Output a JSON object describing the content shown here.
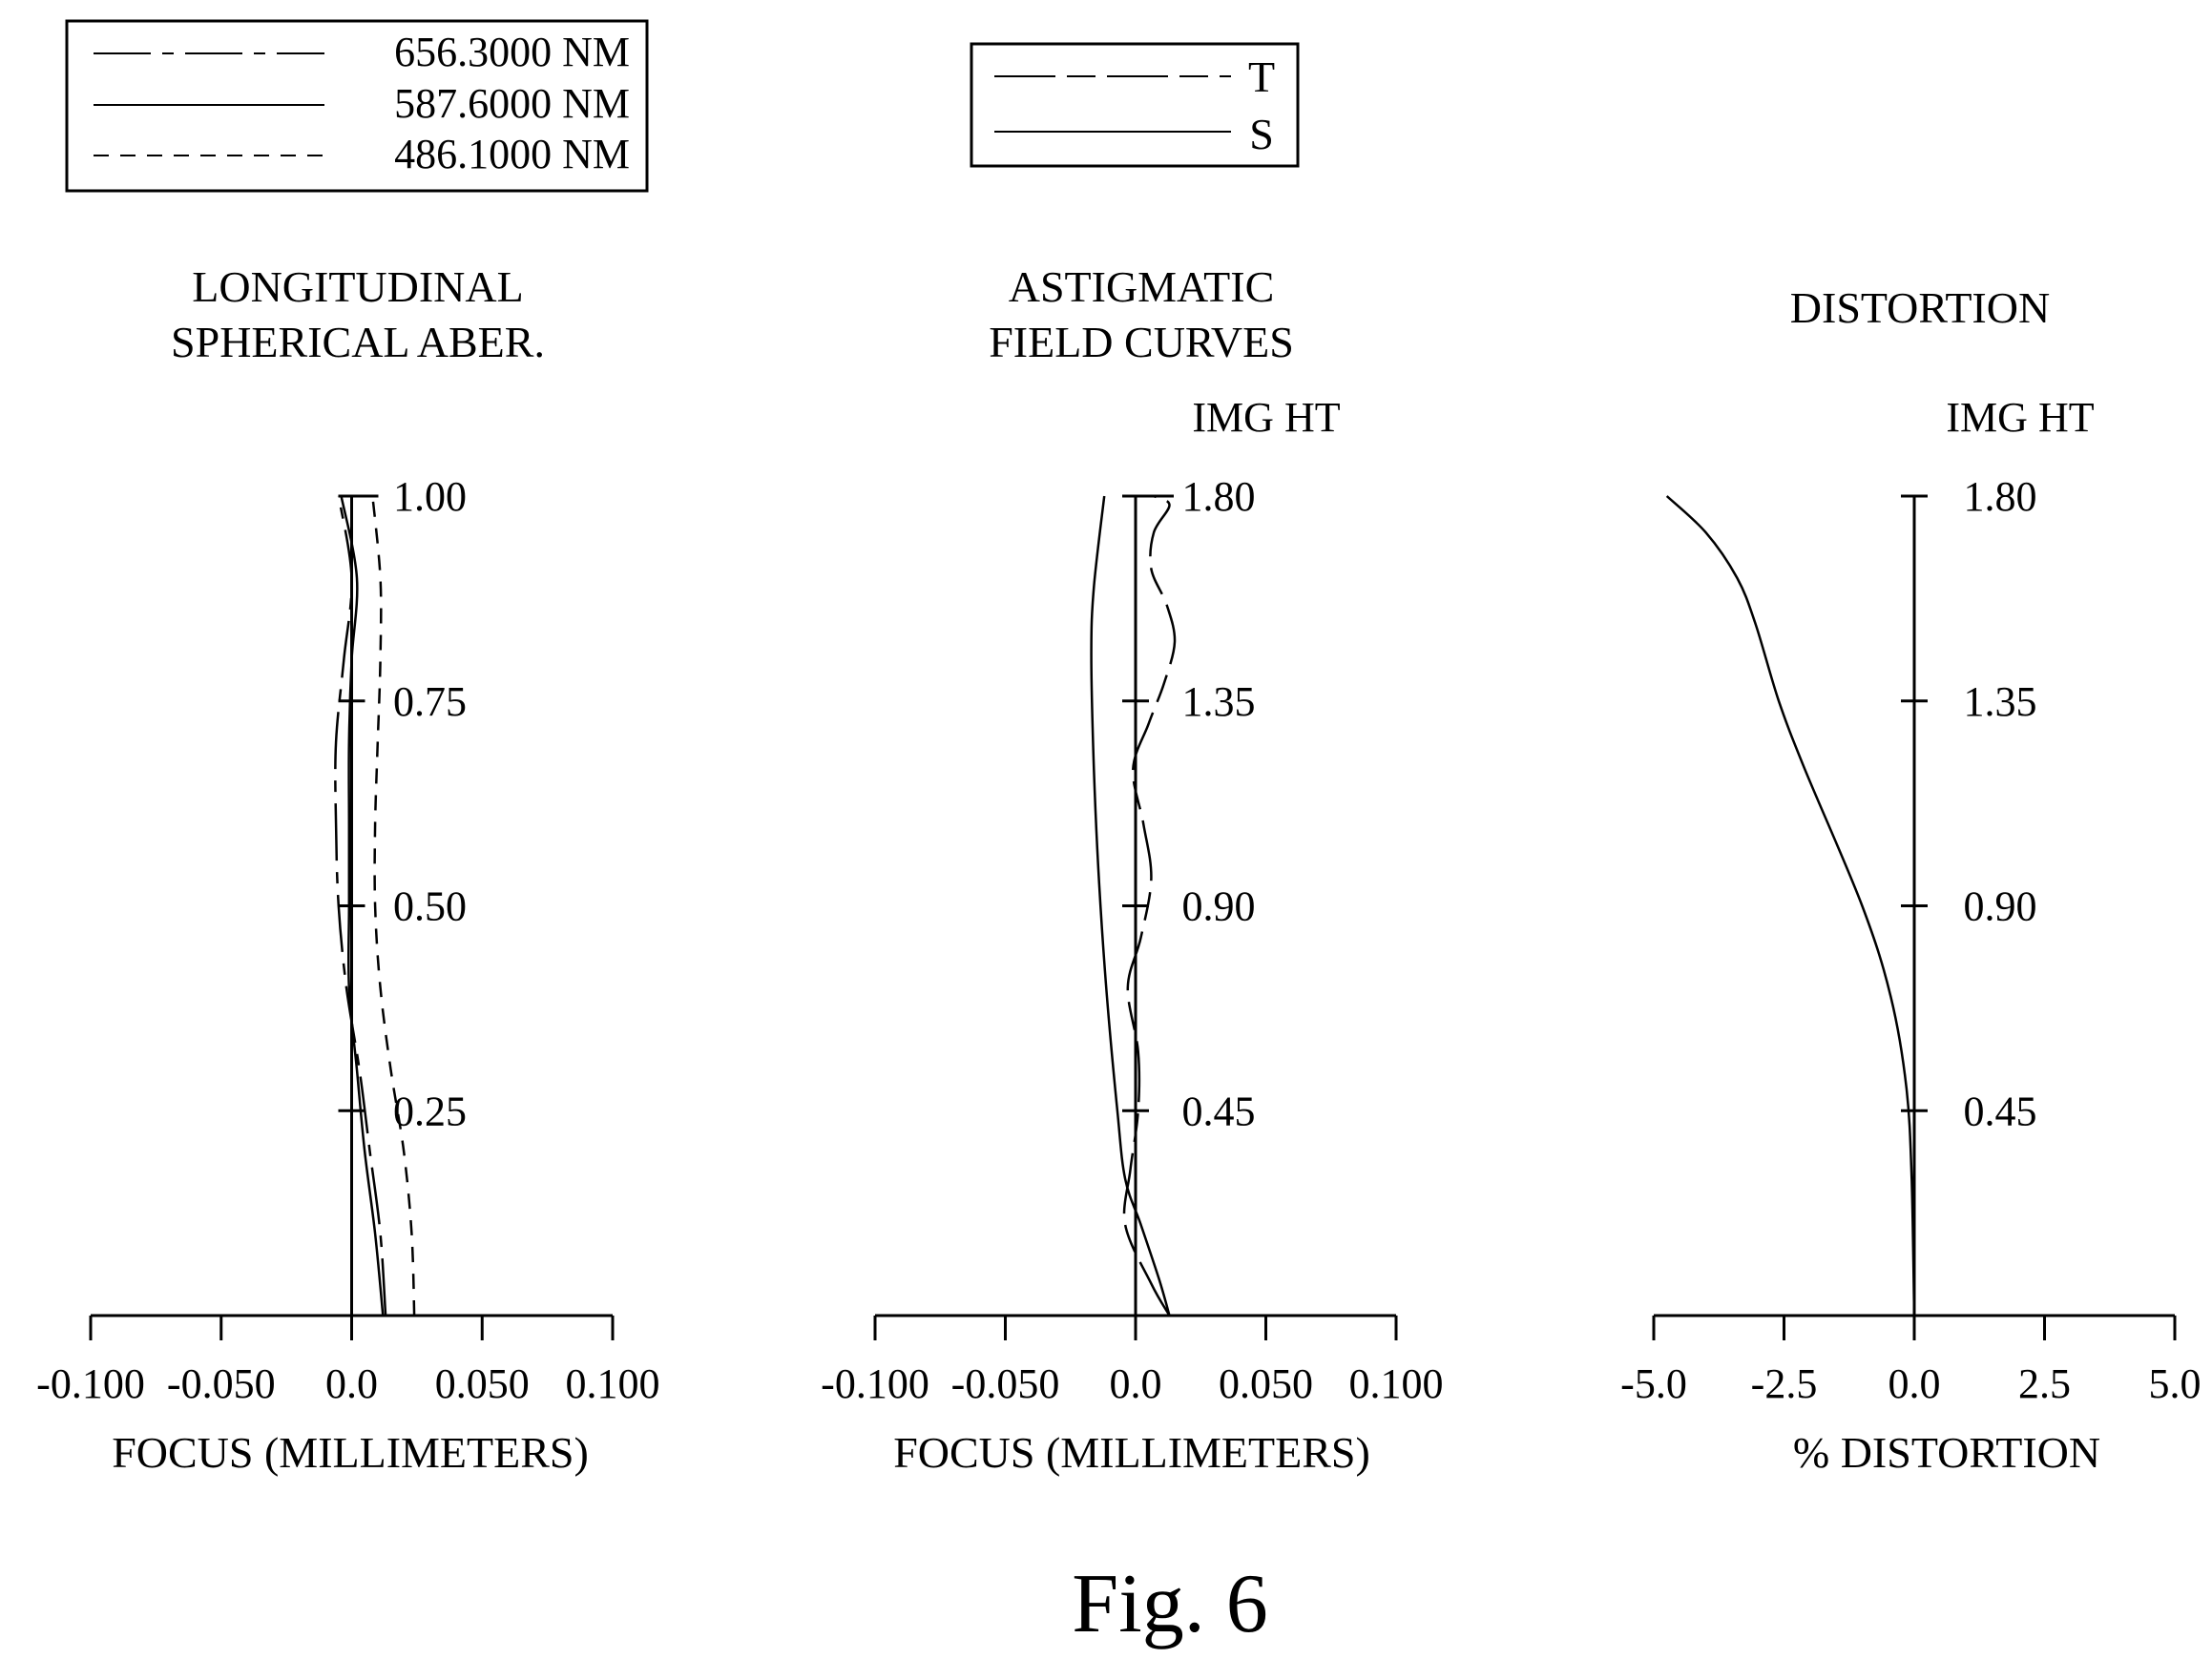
{
  "caption": "Fig. 6",
  "colors": {
    "ink": "#000000",
    "background": "#ffffff"
  },
  "wavelength_legend": {
    "entries": [
      {
        "label": "656.3000 NM",
        "style": "long-dash-dot"
      },
      {
        "label": "587.6000 NM",
        "style": "solid"
      },
      {
        "label": "486.1000 NM",
        "style": "short-dash"
      }
    ]
  },
  "ts_legend": {
    "entries": [
      {
        "label": "T",
        "style": "long-dash"
      },
      {
        "label": "S",
        "style": "solid"
      }
    ]
  },
  "chart_data": [
    {
      "type": "line",
      "title_lines": [
        "LONGITUDINAL",
        "SPHERICAL  ABER."
      ],
      "xlabel": "FOCUS (MILLIMETERS)",
      "ylabel": "",
      "xlim": [
        -0.1,
        0.1
      ],
      "ylim": [
        0,
        1.0
      ],
      "x_ticks": [
        -0.1,
        -0.05,
        0.0,
        0.05,
        0.1
      ],
      "x_tick_labels": [
        "-0.100",
        "-0.050",
        "0.0",
        "0.050",
        "0.100"
      ],
      "y_ticks": [
        0.25,
        0.5,
        0.75,
        1.0
      ],
      "y_tick_labels": [
        "0.25",
        "0.50",
        "0.75",
        "1.00"
      ],
      "grid": false,
      "legend": "top-left",
      "series": [
        {
          "name": "656.3000 NM",
          "style": "long-dash-dot",
          "points": [
            [
              0.013,
              0
            ],
            [
              0.011,
              0.1
            ],
            [
              0.007,
              0.2
            ],
            [
              0.003,
              0.3
            ],
            [
              -0.002,
              0.4
            ],
            [
              -0.005,
              0.5
            ],
            [
              -0.006,
              0.6
            ],
            [
              -0.006,
              0.7
            ],
            [
              -0.003,
              0.8
            ],
            [
              0.0,
              0.9
            ],
            [
              -0.005,
              1.0
            ]
          ]
        },
        {
          "name": "587.6000 NM",
          "style": "solid",
          "points": [
            [
              0.012,
              0
            ],
            [
              0.009,
              0.1
            ],
            [
              0.005,
              0.2
            ],
            [
              0.002,
              0.3
            ],
            [
              -0.001,
              0.4
            ],
            [
              -0.001,
              0.5
            ],
            [
              -0.001,
              0.6
            ],
            [
              -0.001,
              0.7
            ],
            [
              0.0,
              0.8
            ],
            [
              0.002,
              0.9
            ],
            [
              -0.004,
              1.0
            ]
          ]
        },
        {
          "name": "486.1000 NM",
          "style": "short-dash",
          "points": [
            [
              0.024,
              0
            ],
            [
              0.023,
              0.1
            ],
            [
              0.02,
              0.2
            ],
            [
              0.015,
              0.3
            ],
            [
              0.011,
              0.4
            ],
            [
              0.009,
              0.5
            ],
            [
              0.009,
              0.6
            ],
            [
              0.01,
              0.7
            ],
            [
              0.011,
              0.8
            ],
            [
              0.011,
              0.9
            ],
            [
              0.008,
              1.0
            ]
          ]
        }
      ]
    },
    {
      "type": "line",
      "title_lines": [
        "ASTIGMATIC",
        "FIELD  CURVES"
      ],
      "axis_caption": "IMG HT",
      "xlabel": "FOCUS (MILLIMETERS)",
      "ylabel": "",
      "xlim": [
        -0.1,
        0.1
      ],
      "ylim": [
        0,
        1.8
      ],
      "x_ticks": [
        -0.1,
        -0.05,
        0.0,
        0.05,
        0.1
      ],
      "x_tick_labels": [
        "-0.100",
        "-0.050",
        "0.0",
        "0.050",
        "0.100"
      ],
      "y_ticks": [
        0.45,
        0.9,
        1.35,
        1.8
      ],
      "y_tick_labels": [
        "0.45",
        "0.90",
        "1.35",
        "1.80"
      ],
      "grid": false,
      "legend": "top",
      "series": [
        {
          "name": "T",
          "style": "long-dash",
          "points": [
            [
              0.013,
              0
            ],
            [
              0.006,
              0.07
            ],
            [
              -0.004,
              0.2
            ],
            [
              -0.002,
              0.32
            ],
            [
              0.001,
              0.45
            ],
            [
              0.001,
              0.58
            ],
            [
              -0.003,
              0.72
            ],
            [
              0.002,
              0.83
            ],
            [
              0.006,
              0.96
            ],
            [
              0.003,
              1.08
            ],
            [
              -0.001,
              1.2
            ],
            [
              0.005,
              1.3
            ],
            [
              0.011,
              1.39
            ],
            [
              0.015,
              1.48
            ],
            [
              0.012,
              1.56
            ],
            [
              0.006,
              1.64
            ],
            [
              0.007,
              1.72
            ],
            [
              0.013,
              1.78
            ],
            [
              0.007,
              1.8
            ]
          ]
        },
        {
          "name": "S",
          "style": "solid",
          "points": [
            [
              0.013,
              0
            ],
            [
              0.009,
              0.08
            ],
            [
              0.002,
              0.2
            ],
            [
              -0.004,
              0.3
            ],
            [
              -0.007,
              0.45
            ],
            [
              -0.011,
              0.7
            ],
            [
              -0.014,
              0.95
            ],
            [
              -0.016,
              1.2
            ],
            [
              -0.017,
              1.45
            ],
            [
              -0.016,
              1.6
            ],
            [
              -0.012,
              1.8
            ]
          ]
        }
      ]
    },
    {
      "type": "line",
      "title_lines": [
        "DISTORTION"
      ],
      "axis_caption": "IMG HT",
      "xlabel": "%  DISTORTION",
      "ylabel": "",
      "xlim": [
        -5.0,
        5.0
      ],
      "ylim": [
        0,
        1.8
      ],
      "x_ticks": [
        -5.0,
        -2.5,
        0.0,
        2.5,
        5.0
      ],
      "x_tick_labels": [
        "-5.0",
        "-2.5",
        "0.0",
        "2.5",
        "5.0"
      ],
      "y_ticks": [
        0.45,
        0.9,
        1.35,
        1.8
      ],
      "y_tick_labels": [
        "0.45",
        "0.90",
        "1.35",
        "1.80"
      ],
      "grid": false,
      "series": [
        {
          "name": "",
          "style": "solid",
          "points": [
            [
              0.0,
              0
            ],
            [
              -0.05,
              0.3
            ],
            [
              -0.15,
              0.5
            ],
            [
              -0.45,
              0.7
            ],
            [
              -1.0,
              0.9
            ],
            [
              -2.1,
              1.2
            ],
            [
              -2.6,
              1.35
            ],
            [
              -3.05,
              1.52
            ],
            [
              -3.4,
              1.62
            ],
            [
              -4.0,
              1.72
            ],
            [
              -4.75,
              1.8
            ]
          ]
        }
      ]
    }
  ]
}
